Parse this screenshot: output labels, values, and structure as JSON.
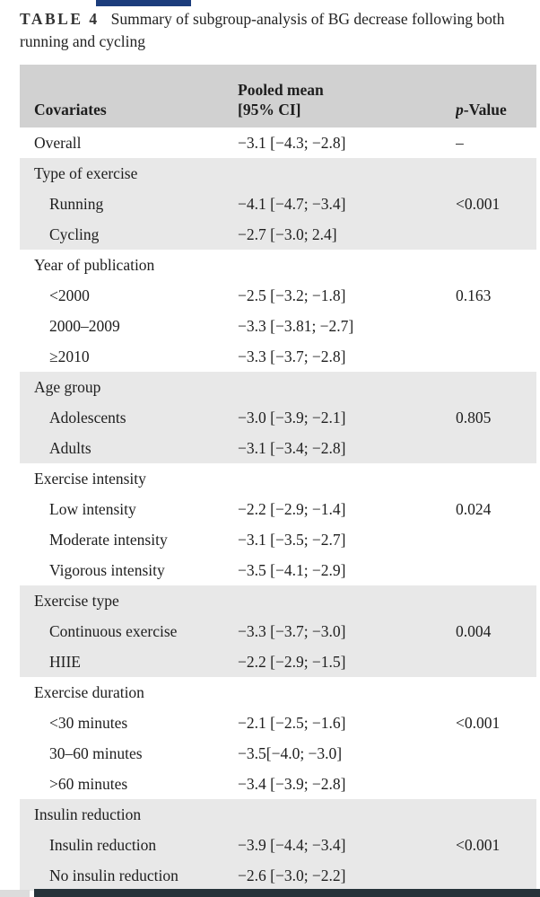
{
  "page": {
    "top_bar_color": "#1c3d7c",
    "bottom_bar_color": "#26333a",
    "bottom_left_block_color": "#dcdcdc",
    "header_bg": "#d1d1d1",
    "stripe_bg": "#e8e8e8"
  },
  "table": {
    "label": "TABLE 4",
    "caption": "Summary of subgroup-analysis of BG decrease following both running and cycling",
    "header": {
      "covariates": "Covariates",
      "pooled_line1": "Pooled mean",
      "pooled_line2": "[95% CI]",
      "p_italic": "p",
      "p_rest": "-Value"
    },
    "sections": [
      {
        "shaded": false,
        "group": null,
        "rows": [
          {
            "label": "Overall",
            "indent": false,
            "value": "−3.1 [−4.3; −2.8]",
            "p": "–"
          }
        ]
      },
      {
        "shaded": true,
        "group": "Type of exercise",
        "rows": [
          {
            "label": "Running",
            "indent": true,
            "value": "−4.1 [−4.7; −3.4]",
            "p": "<0.001"
          },
          {
            "label": "Cycling",
            "indent": true,
            "value": "−2.7 [−3.0; 2.4]",
            "p": ""
          }
        ]
      },
      {
        "shaded": false,
        "group": "Year of publication",
        "rows": [
          {
            "label": "<2000",
            "indent": true,
            "value": "−2.5 [−3.2; −1.8]",
            "p": "0.163"
          },
          {
            "label": "2000–2009",
            "indent": true,
            "value": "−3.3 [−3.81; −2.7]",
            "p": ""
          },
          {
            "label": "≥2010",
            "indent": true,
            "value": "−3.3 [−3.7; −2.8]",
            "p": ""
          }
        ]
      },
      {
        "shaded": true,
        "group": "Age group",
        "rows": [
          {
            "label": "Adolescents",
            "indent": true,
            "value": "−3.0 [−3.9; −2.1]",
            "p": "0.805"
          },
          {
            "label": "Adults",
            "indent": true,
            "value": "−3.1 [−3.4; −2.8]",
            "p": ""
          }
        ]
      },
      {
        "shaded": false,
        "group": "Exercise intensity",
        "rows": [
          {
            "label": "Low intensity",
            "indent": true,
            "value": "−2.2 [−2.9; −1.4]",
            "p": "0.024"
          },
          {
            "label": "Moderate intensity",
            "indent": true,
            "value": "−3.1 [−3.5; −2.7]",
            "p": ""
          },
          {
            "label": "Vigorous intensity",
            "indent": true,
            "value": "−3.5 [−4.1; −2.9]",
            "p": ""
          }
        ]
      },
      {
        "shaded": true,
        "group": "Exercise type",
        "rows": [
          {
            "label": "Continuous exercise",
            "indent": true,
            "value": "−3.3 [−3.7; −3.0]",
            "p": "0.004"
          },
          {
            "label": "HIIE",
            "indent": true,
            "value": "−2.2 [−2.9; −1.5]",
            "p": ""
          }
        ]
      },
      {
        "shaded": false,
        "group": "Exercise duration",
        "rows": [
          {
            "label": "<30 minutes",
            "indent": true,
            "value": "−2.1 [−2.5; −1.6]",
            "p": "<0.001"
          },
          {
            "label": "30–60 minutes",
            "indent": true,
            "value": "−3.5[−4.0; −3.0]",
            "p": ""
          },
          {
            "label": ">60 minutes",
            "indent": true,
            "value": "−3.4 [−3.9; −2.8]",
            "p": ""
          }
        ]
      },
      {
        "shaded": true,
        "group": "Insulin reduction",
        "rows": [
          {
            "label": "Insulin reduction",
            "indent": true,
            "value": "−3.9 [−4.4; −3.4]",
            "p": "<0.001"
          },
          {
            "label": "No insulin reduction",
            "indent": true,
            "value": "−2.6 [−3.0; −2.2]",
            "p": ""
          }
        ]
      }
    ]
  }
}
